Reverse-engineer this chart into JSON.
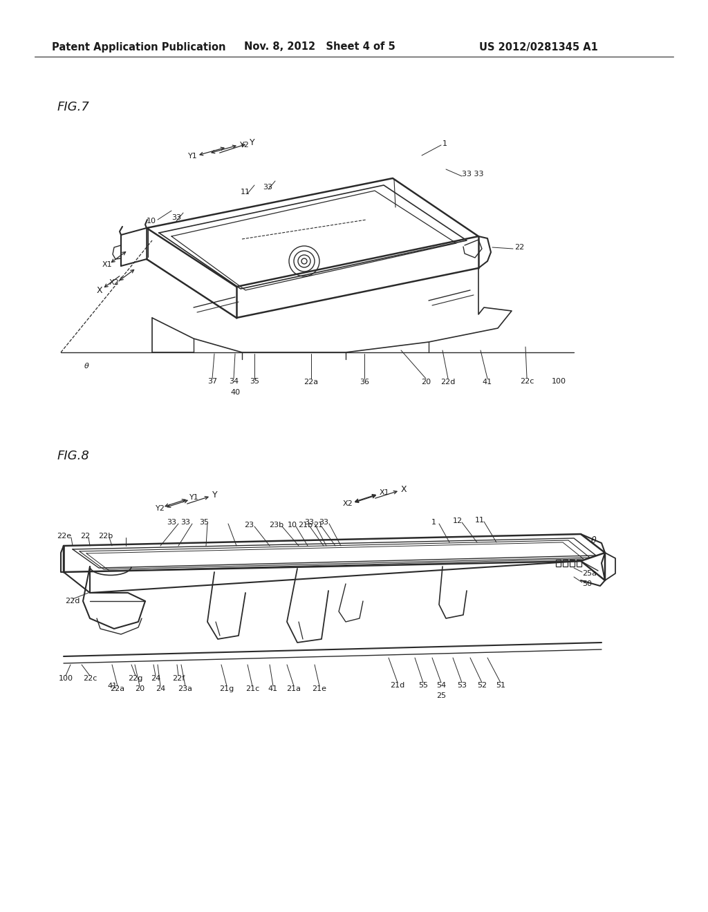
{
  "background_color": "#ffffff",
  "header_left": "Patent Application Publication",
  "header_mid": "Nov. 8, 2012   Sheet 4 of 5",
  "header_right": "US 2012/0281345 A1",
  "fig7_label": "FIG.7",
  "fig8_label": "FIG.8",
  "text_color": "#1a1a1a",
  "line_color": "#2a2a2a",
  "header_fontsize": 10.5,
  "fig_label_fontsize": 13,
  "label_fontsize": 8.0
}
